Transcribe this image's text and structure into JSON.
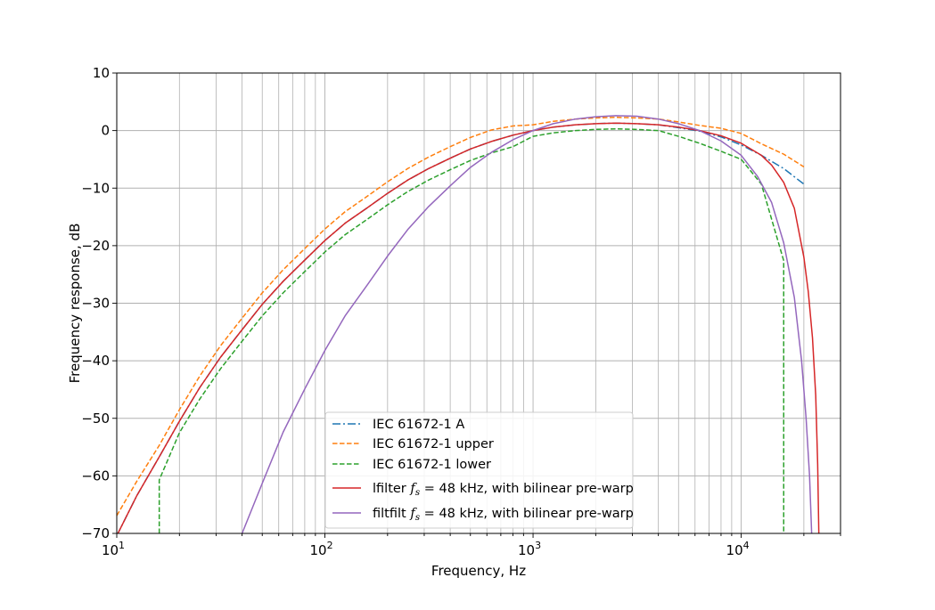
{
  "chart_data": {
    "type": "line",
    "title": "",
    "xlabel": "Frequency, Hz",
    "ylabel": "Frequency response, dB",
    "xscale": "log",
    "xlim": [
      10,
      30000
    ],
    "ylim": [
      -70,
      10
    ],
    "grid": true,
    "grid_minor_x": true,
    "legend_position": "lower-center",
    "x_tick_labels": [
      {
        "value": 10,
        "base": "10",
        "exp": "1"
      },
      {
        "value": 100,
        "base": "10",
        "exp": "2"
      },
      {
        "value": 1000,
        "base": "10",
        "exp": "3"
      },
      {
        "value": 10000,
        "base": "10",
        "exp": "4"
      }
    ],
    "y_ticks": [
      10,
      0,
      -10,
      -20,
      -30,
      -40,
      -50,
      -60,
      -70
    ],
    "y_tick_labels": [
      "10",
      "0",
      "−10",
      "−20",
      "−30",
      "−40",
      "−50",
      "−60",
      "−70"
    ],
    "series": [
      {
        "name": "IEC 61672-1 A",
        "color": "#1f77b4",
        "style": "dashdot",
        "x": [
          10,
          12.5,
          16,
          20,
          25,
          31.5,
          40,
          50,
          63,
          80,
          100,
          125,
          160,
          200,
          250,
          315,
          400,
          500,
          630,
          800,
          1000,
          1250,
          1600,
          2000,
          2500,
          3150,
          4000,
          5000,
          6300,
          8000,
          10000,
          12500,
          16000,
          20000
        ],
        "y": [
          -70.4,
          -63.4,
          -56.7,
          -50.5,
          -44.7,
          -39.4,
          -34.6,
          -30.2,
          -26.2,
          -22.5,
          -19.1,
          -16.1,
          -13.4,
          -10.9,
          -8.6,
          -6.6,
          -4.8,
          -3.2,
          -1.9,
          -0.8,
          0.0,
          0.6,
          1.0,
          1.2,
          1.3,
          1.2,
          1.0,
          0.5,
          -0.1,
          -1.1,
          -2.5,
          -4.3,
          -6.6,
          -9.3
        ]
      },
      {
        "name": "IEC 61672-1 upper",
        "color": "#ff7f0e",
        "style": "dashed",
        "x": [
          10,
          12.5,
          16,
          20,
          25,
          31.5,
          40,
          50,
          63,
          80,
          100,
          125,
          160,
          200,
          250,
          315,
          400,
          500,
          630,
          800,
          1000,
          1250,
          1600,
          2000,
          2500,
          3150,
          4000,
          5000,
          6300,
          8000,
          10000,
          12500,
          16000,
          20000
        ],
        "y": [
          -66.9,
          -60.9,
          -54.7,
          -48.5,
          -42.7,
          -37.4,
          -32.6,
          -28.2,
          -24.2,
          -20.5,
          -17.1,
          -14.1,
          -11.4,
          -8.9,
          -6.6,
          -4.6,
          -2.8,
          -1.2,
          0.1,
          0.8,
          1.0,
          1.6,
          2.0,
          2.2,
          2.3,
          2.2,
          2.0,
          1.5,
          0.9,
          0.4,
          -0.5,
          -2.3,
          -4.1,
          -6.3
        ]
      },
      {
        "name": "IEC 61672-1 lower",
        "color": "#2ca02c",
        "style": "dashed",
        "x": [
          16,
          16,
          20,
          25,
          31.5,
          40,
          50,
          63,
          80,
          100,
          125,
          160,
          200,
          250,
          315,
          400,
          500,
          630,
          800,
          1000,
          1250,
          1600,
          2000,
          2500,
          3150,
          4000,
          5000,
          6300,
          8000,
          10000,
          12500,
          16000,
          16000
        ],
        "y": [
          -70,
          -60.7,
          -52.5,
          -46.7,
          -41.4,
          -36.6,
          -32.2,
          -28.2,
          -24.5,
          -21.1,
          -18.1,
          -15.4,
          -12.9,
          -10.6,
          -8.6,
          -6.8,
          -5.2,
          -3.9,
          -2.8,
          -1.0,
          -0.4,
          0.0,
          0.2,
          0.3,
          0.2,
          0.0,
          -1.0,
          -2.2,
          -3.6,
          -5.0,
          -9.3,
          -22.6,
          -70
        ]
      },
      {
        "name": "lfilter $f_s = 48$ kHz, with bilinear pre-warp",
        "legend_prefix": "lfilter ",
        "legend_math": "f",
        "legend_sub": "s",
        "legend_suffix": " = 48 kHz, with bilinear pre-warp",
        "color": "#d62728",
        "style": "solid",
        "x": [
          10,
          12.5,
          16,
          20,
          25,
          31.5,
          40,
          50,
          63,
          80,
          100,
          125,
          160,
          200,
          250,
          315,
          400,
          500,
          630,
          800,
          1000,
          1250,
          1600,
          2000,
          2500,
          3150,
          4000,
          5000,
          6300,
          8000,
          10000,
          12500,
          14000,
          16000,
          18000,
          20000,
          21000,
          22000,
          22800,
          23300,
          23600
        ],
        "y": [
          -70.4,
          -63.4,
          -56.7,
          -50.5,
          -44.7,
          -39.4,
          -34.6,
          -30.2,
          -26.2,
          -22.5,
          -19.1,
          -16.1,
          -13.4,
          -10.9,
          -8.6,
          -6.6,
          -4.8,
          -3.2,
          -1.9,
          -0.8,
          0.0,
          0.6,
          1.0,
          1.2,
          1.3,
          1.2,
          1.0,
          0.6,
          0.0,
          -0.9,
          -2.2,
          -4.3,
          -6.0,
          -9.0,
          -13.5,
          -22.0,
          -28.0,
          -36.0,
          -46.0,
          -58.0,
          -70.0
        ]
      },
      {
        "name": "filtfilt $f_s = 48$ kHz, with bilinear pre-warp",
        "legend_prefix": "filtfilt ",
        "legend_math": "f",
        "legend_sub": "s",
        "legend_suffix": " = 48 kHz, with bilinear pre-warp",
        "color": "#9467bd",
        "style": "solid",
        "x": [
          40,
          50,
          63,
          80,
          100,
          125,
          160,
          200,
          250,
          315,
          400,
          500,
          630,
          800,
          1000,
          1250,
          1600,
          2000,
          2500,
          3150,
          4000,
          5000,
          6300,
          8000,
          10000,
          12000,
          14000,
          16000,
          18000,
          19500,
          20500,
          21300,
          21800
        ],
        "y": [
          -70.0,
          -61.3,
          -52.4,
          -44.9,
          -38.2,
          -32.2,
          -26.8,
          -21.8,
          -17.2,
          -13.2,
          -9.6,
          -6.4,
          -3.8,
          -1.6,
          0.0,
          1.2,
          2.0,
          2.4,
          2.6,
          2.5,
          2.0,
          1.2,
          0.0,
          -1.8,
          -4.3,
          -8.0,
          -12.5,
          -19.5,
          -29.0,
          -40.0,
          -50.0,
          -60.0,
          -70.0
        ]
      }
    ]
  }
}
